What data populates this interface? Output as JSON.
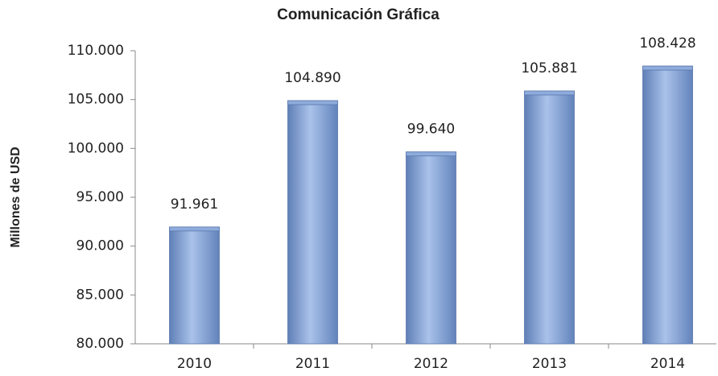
{
  "chart_data": {
    "type": "bar",
    "title": "Comunicación  Gráfica",
    "y_label": "Millones de USD",
    "categories": [
      "2010",
      "2011",
      "2012",
      "2013",
      "2014"
    ],
    "values": [
      91961,
      104890,
      99640,
      105881,
      108428
    ],
    "value_labels": [
      "91.961",
      "104.890",
      "99.640",
      "105.881",
      "108.428"
    ],
    "color": "#8eabdb",
    "ylim": [
      80000,
      110000
    ],
    "yticks": [
      {
        "value": 80000,
        "label": "80.000"
      },
      {
        "value": 85000,
        "label": "85.000"
      },
      {
        "value": 90000,
        "label": "90.000"
      },
      {
        "value": 95000,
        "label": "95.000"
      },
      {
        "value": 100000,
        "label": "100.000"
      },
      {
        "value": 105000,
        "label": "105.000"
      },
      {
        "value": 110000,
        "label": "110.000"
      }
    ],
    "grid": false
  }
}
